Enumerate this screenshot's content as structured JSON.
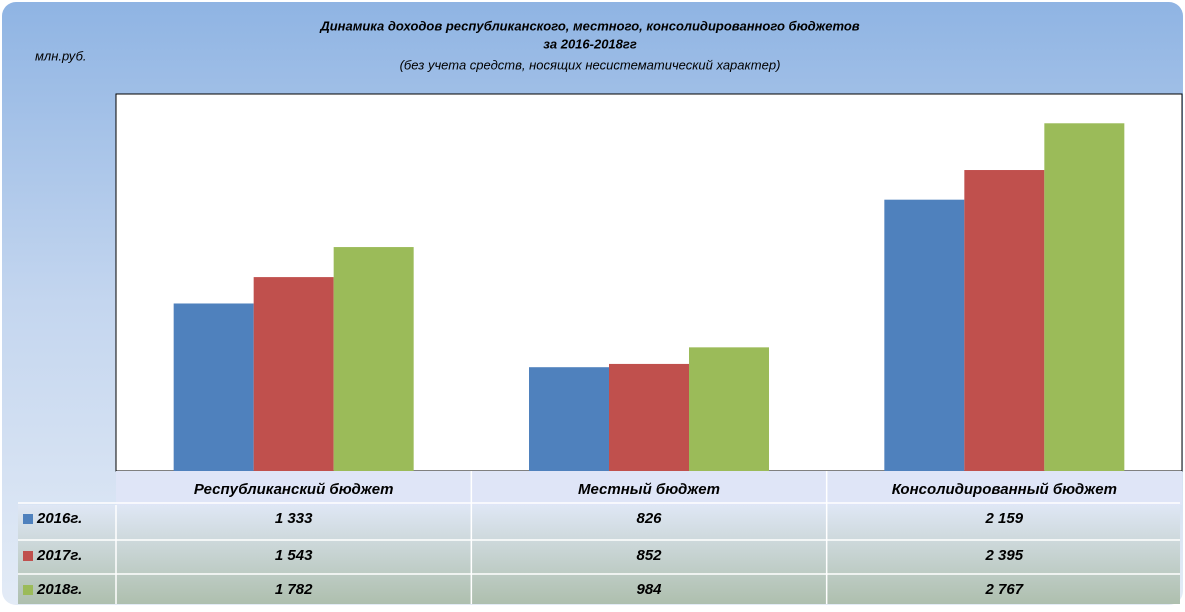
{
  "chart_data": {
    "type": "bar",
    "title": "Динамика доходов республиканского, местного, консолидированного бюджетов",
    "subtitle": "за 2016-2018гг",
    "note": "(без учета средств, носящих несистематический характер)",
    "ylabel": "млн.руб.",
    "categories": [
      "Республиканский бюджет",
      "Местный бюджет",
      "Консолидированный бюджет"
    ],
    "series": [
      {
        "name": "2016г.",
        "color": "#4f81bd",
        "values": [
          1333,
          826,
          2159
        ],
        "value_labels": [
          "1 333",
          "826",
          "2 159"
        ]
      },
      {
        "name": "2017г.",
        "color": "#c0504d",
        "values": [
          1543,
          852,
          2395
        ],
        "value_labels": [
          "1 543",
          "852",
          "2 395"
        ]
      },
      {
        "name": "2018г.",
        "color": "#9bbb59",
        "values": [
          1782,
          984,
          2767
        ],
        "value_labels": [
          "1 782",
          "984",
          "2 767"
        ]
      }
    ],
    "ylim": [
      0,
      3000
    ]
  }
}
